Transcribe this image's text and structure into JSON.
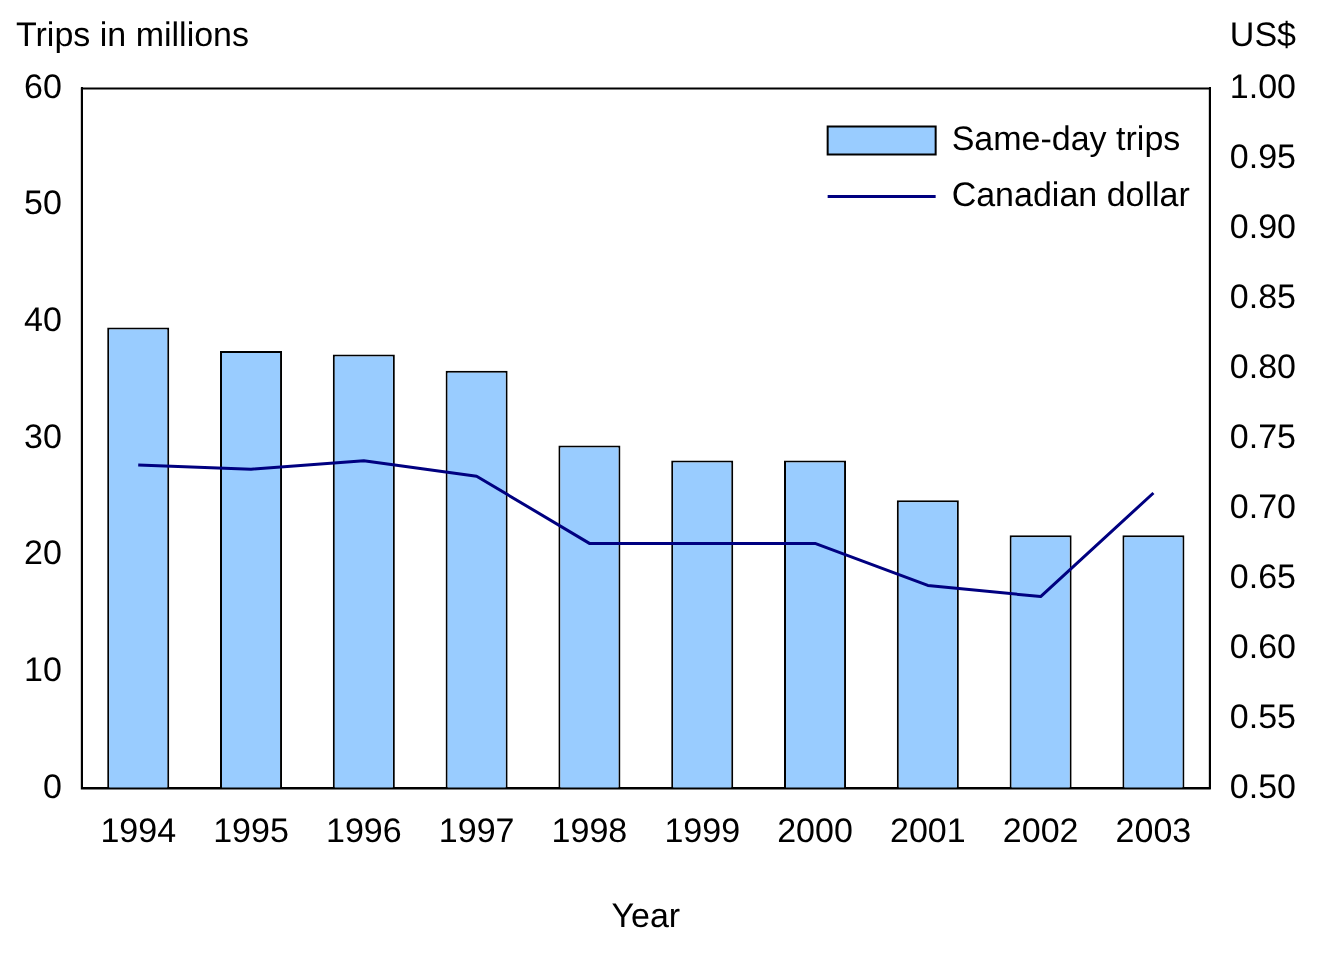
{
  "chart_data": {
    "type": "bar",
    "xlabel": "Year",
    "ylabel": "Trips in millions",
    "y2label": "US$",
    "categories": [
      "1994",
      "1995",
      "1996",
      "1997",
      "1998",
      "1999",
      "2000",
      "2001",
      "2002",
      "2003"
    ],
    "series": [
      {
        "name": "Same-day trips",
        "color": "#99ccff",
        "values": [
          39.5,
          37.5,
          37.2,
          35.8,
          29.4,
          28.1,
          28.1,
          24.7,
          21.7,
          21.7
        ]
      },
      {
        "name": "Canadian dollar",
        "type": "line",
        "axis": "y2",
        "color": "#000080",
        "values": [
          0.731,
          0.728,
          0.734,
          0.723,
          0.675,
          0.675,
          0.675,
          0.645,
          0.637,
          0.711
        ]
      }
    ],
    "ylim": [
      0,
      60
    ],
    "yticks": [
      0,
      10,
      20,
      30,
      40,
      50,
      60
    ],
    "y2lim": [
      0.5,
      1.0
    ],
    "y2ticks": [
      {
        "value": 0.5,
        "label": "0.50"
      },
      {
        "value": 0.55,
        "label": "0.55"
      },
      {
        "value": 0.6,
        "label": "0.60"
      },
      {
        "value": 0.65,
        "label": "0.65"
      },
      {
        "value": 0.7,
        "label": "0.70"
      },
      {
        "value": 0.75,
        "label": "0.75"
      },
      {
        "value": 0.8,
        "label": "0.80"
      },
      {
        "value": 0.85,
        "label": "0.85"
      },
      {
        "value": 0.9,
        "label": "0.90"
      },
      {
        "value": 0.95,
        "label": "0.95"
      },
      {
        "value": 1.0,
        "label": "1.00"
      }
    ],
    "grid": false,
    "legend": "top right",
    "marker": "none",
    "line_style": "solid"
  }
}
